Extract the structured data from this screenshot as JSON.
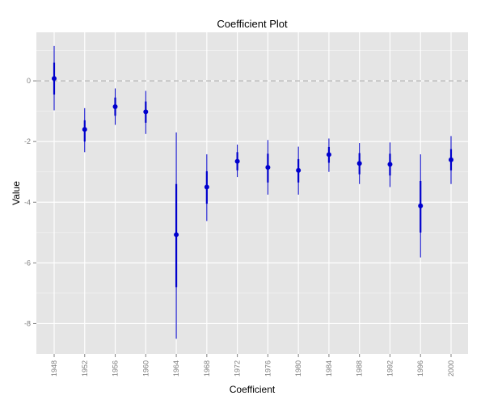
{
  "chart_data": {
    "type": "scatter",
    "title": "Coefficient Plot",
    "xlabel": "Coefficient",
    "ylabel": "Value",
    "ylim": [
      -9,
      1.6
    ],
    "y_ticks": [
      0,
      -2,
      -4,
      -6,
      -8
    ],
    "y_tick_labels": [
      "0",
      "-2",
      "-4",
      "-6",
      "-8"
    ],
    "reference_line": 0,
    "grid": true,
    "categories": [
      "1948",
      "1952",
      "1956",
      "1960",
      "1964",
      "1968",
      "1972",
      "1976",
      "1980",
      "1984",
      "1988",
      "1992",
      "1996",
      "2000"
    ],
    "series": [
      {
        "values": [
          0.08,
          -1.6,
          -0.85,
          -1.02,
          -5.07,
          -3.5,
          -2.65,
          -2.85,
          -2.95,
          -2.43,
          -2.72,
          -2.75,
          -4.12,
          -2.6
        ],
        "inner_low": [
          -0.45,
          -2.0,
          -1.15,
          -1.38,
          -6.8,
          -4.05,
          -2.95,
          -3.35,
          -3.35,
          -2.7,
          -3.08,
          -3.12,
          -5.0,
          -2.95
        ],
        "inner_high": [
          0.6,
          -1.3,
          -0.55,
          -0.68,
          -3.4,
          -2.98,
          -2.35,
          -2.4,
          -2.58,
          -2.18,
          -2.38,
          -2.4,
          -3.3,
          -2.25
        ],
        "outer_low": [
          -0.97,
          -2.35,
          -1.45,
          -1.75,
          -8.5,
          -4.62,
          -3.17,
          -3.75,
          -3.75,
          -3.0,
          -3.4,
          -3.5,
          -5.82,
          -3.4
        ],
        "outer_high": [
          1.15,
          -0.9,
          -0.25,
          -0.33,
          -1.7,
          -2.42,
          -2.1,
          -1.95,
          -2.17,
          -1.9,
          -2.05,
          -2.03,
          -2.42,
          -1.82
        ]
      }
    ],
    "colors": {
      "panel": "#e5e5e5",
      "grid_major": "#ffffff",
      "grid_minor": "#f2f2f2",
      "reference_line": "#bfbfbf",
      "point": "#0000cd",
      "tick_label": "#7f7f7f"
    }
  }
}
